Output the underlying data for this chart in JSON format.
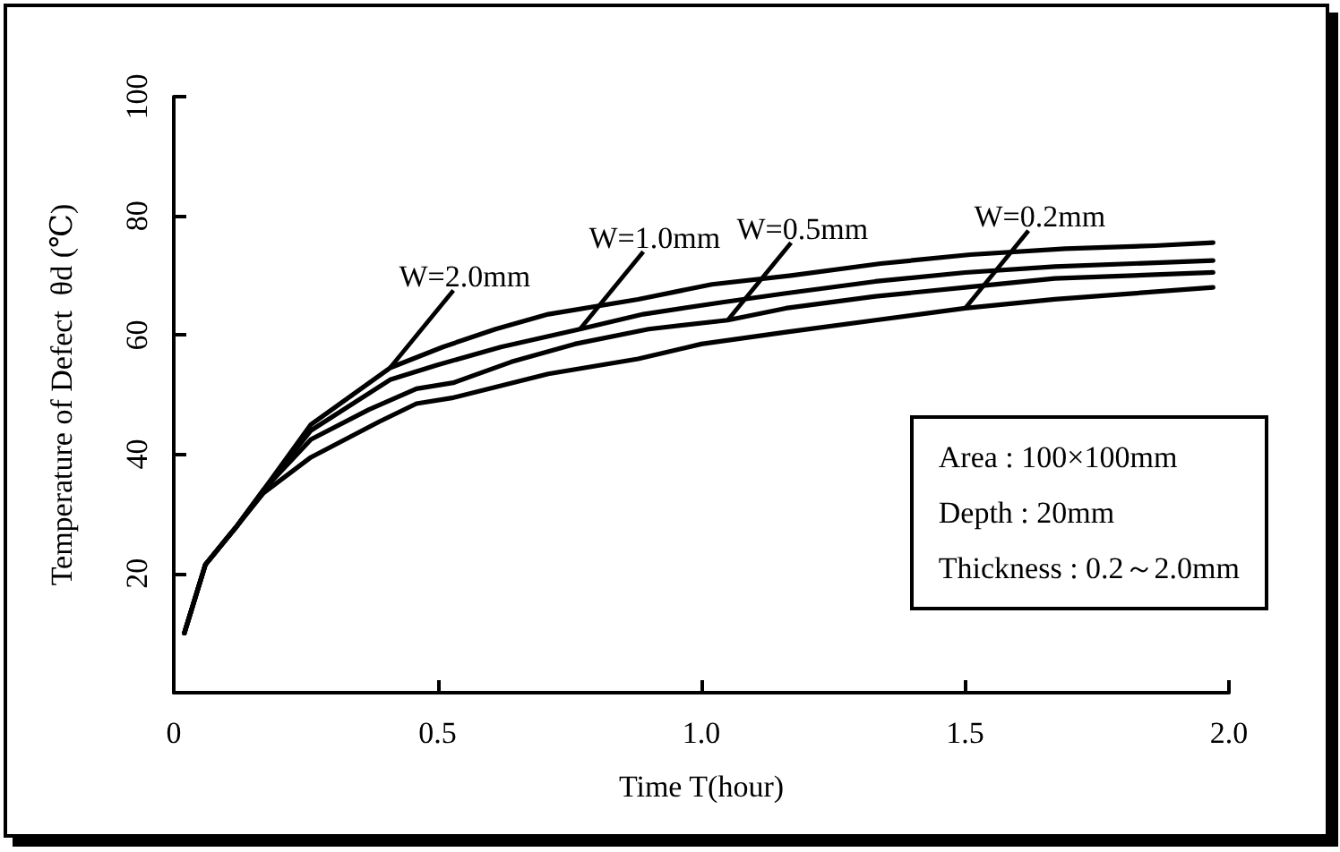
{
  "chart_data": {
    "type": "line",
    "xlabel": "Time T(hour)",
    "ylabel": "Temperature of Defect  θd (℃)",
    "xlim": [
      0,
      2
    ],
    "xticks": [
      0,
      0.5,
      {
        "value": 1,
        "label": "1.0"
      },
      1.5,
      {
        "value": 2,
        "label": "2.0"
      }
    ],
    "ylim": [
      0,
      100
    ],
    "yticks": [
      {
        "value": 0,
        "label": null
      },
      20,
      40,
      60,
      80,
      100
    ],
    "grid": false,
    "legend": false,
    "marker": "none",
    "line_style": "solid",
    "annotations": [
      "Area :  100×100mm",
      "Depth : 20mm",
      "Thickness :  0.2～2.0mm"
    ],
    "series": [
      {
        "name": "W=2.0mm",
        "color": "#000000",
        "x": [
          0.02,
          0.06,
          0.12,
          0.17,
          0.26,
          0.41,
          0.51,
          0.61,
          0.71,
          0.88,
          1.02,
          1.17,
          1.34,
          1.51,
          1.69,
          1.86,
          1.97
        ],
        "values": [
          10,
          21.5,
          28,
          34,
          45,
          54.5,
          58,
          61,
          63.5,
          66,
          68.5,
          70,
          72,
          73.5,
          74.5,
          75,
          75.5
        ]
      },
      {
        "name": "W=1.0mm",
        "color": "#000000",
        "x": [
          0.02,
          0.06,
          0.12,
          0.17,
          0.26,
          0.41,
          0.5,
          0.62,
          0.77,
          0.89,
          1.04,
          1.16,
          1.33,
          1.5,
          1.67,
          1.97
        ],
        "values": [
          10,
          21.5,
          28,
          34,
          44,
          52.5,
          55,
          58,
          61,
          63.5,
          65.5,
          67,
          69,
          70.5,
          71.5,
          72.5
        ]
      },
      {
        "name": "W=0.5mm",
        "color": "#000000",
        "x": [
          0.02,
          0.06,
          0.12,
          0.17,
          0.26,
          0.37,
          0.46,
          0.53,
          0.64,
          0.76,
          0.9,
          1.05,
          1.16,
          1.33,
          1.5,
          1.67,
          1.97
        ],
        "values": [
          10,
          21.5,
          28,
          34,
          42.5,
          47.5,
          51,
          52,
          55.5,
          58.5,
          61,
          62.5,
          64.5,
          66.5,
          68,
          69.5,
          70.5
        ]
      },
      {
        "name": "W=0.2mm",
        "color": "#000000",
        "x": [
          0.02,
          0.06,
          0.12,
          0.17,
          0.26,
          0.39,
          0.46,
          0.53,
          0.71,
          0.88,
          1.0,
          1.16,
          1.33,
          1.5,
          1.67,
          1.97
        ],
        "values": [
          10,
          21.5,
          28,
          33.5,
          39.5,
          45.5,
          48.5,
          49.5,
          53.5,
          56,
          58.5,
          60.5,
          62.5,
          64.5,
          66,
          68
        ]
      }
    ]
  }
}
